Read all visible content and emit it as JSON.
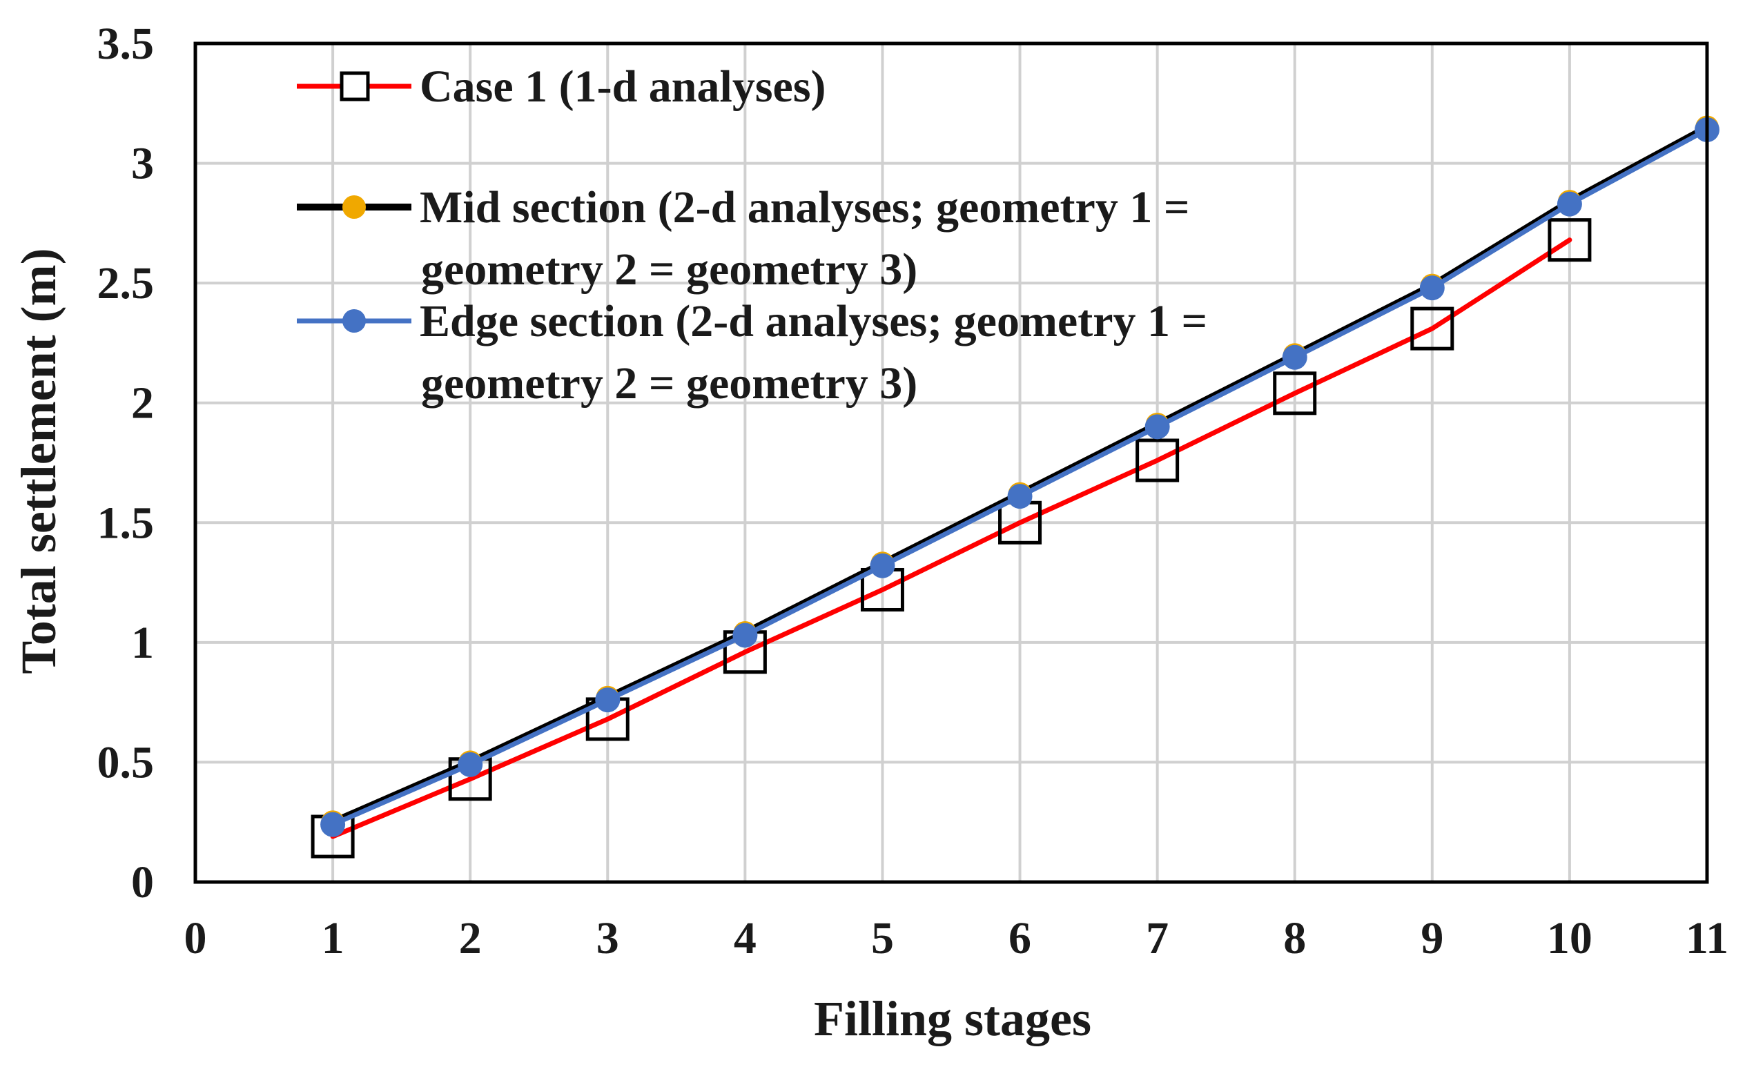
{
  "chart_data": {
    "type": "line",
    "xlabel": "Filling stages",
    "ylabel": "Total  settlement (m)",
    "xlim": [
      0,
      11
    ],
    "ylim": [
      0,
      3.5
    ],
    "xticks": [
      0,
      1,
      2,
      3,
      4,
      5,
      6,
      7,
      8,
      9,
      10,
      11
    ],
    "yticks": [
      0,
      0.5,
      1,
      1.5,
      2,
      2.5,
      3,
      3.5
    ],
    "grid": true,
    "legend_position": "top-left",
    "series": [
      {
        "name": "Case 1 (1-d analyses)",
        "legend_lines": [
          "Case 1 (1-d analyses)"
        ],
        "line_color": "#ff0000",
        "marker": "open-square",
        "x": [
          1,
          2,
          3,
          4,
          5,
          6,
          7,
          8,
          9,
          10
        ],
        "values": [
          0.19,
          0.43,
          0.68,
          0.96,
          1.22,
          1.5,
          1.76,
          2.04,
          2.31,
          2.68
        ]
      },
      {
        "name": "Mid section (2-d analyses; geometry 1 = geometry 2 = geometry 3)",
        "legend_lines": [
          "Mid section (2-d analyses; geometry 1 =",
          "geometry 2 = geometry 3)"
        ],
        "line_color": "#000000",
        "marker": "circle",
        "marker_color": "#f0a800",
        "x": [
          1,
          2,
          3,
          4,
          5,
          6,
          7,
          8,
          9,
          10,
          11
        ],
        "values": [
          0.25,
          0.5,
          0.77,
          1.04,
          1.33,
          1.62,
          1.91,
          2.2,
          2.49,
          2.84,
          3.15
        ]
      },
      {
        "name": "Edge section (2-d analyses; geometry 1 = geometry 2 = geometry 3)",
        "legend_lines": [
          "Edge section (2-d analyses; geometry 1 =",
          "geometry 2 = geometry 3)"
        ],
        "line_color": "#4472c4",
        "marker": "circle",
        "marker_color": "#4472c4",
        "x": [
          1,
          2,
          3,
          4,
          5,
          6,
          7,
          8,
          9,
          10,
          11
        ],
        "values": [
          0.24,
          0.49,
          0.76,
          1.03,
          1.32,
          1.61,
          1.9,
          2.19,
          2.48,
          2.83,
          3.14
        ]
      }
    ]
  }
}
